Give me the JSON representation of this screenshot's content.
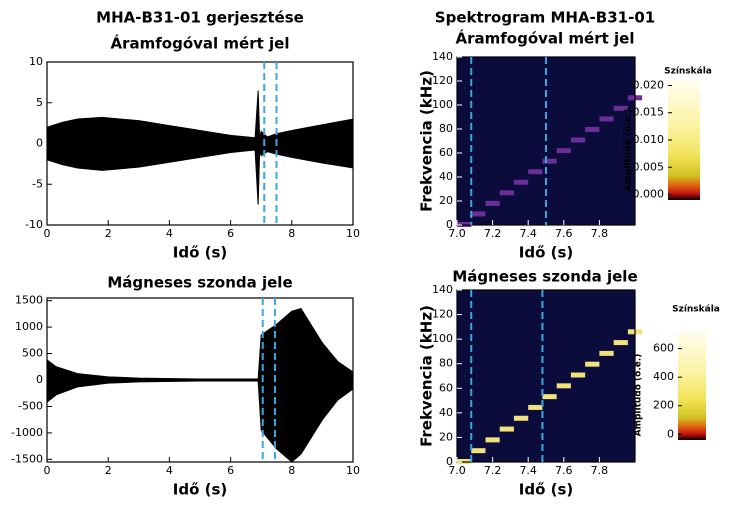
{
  "chart_data": [
    {
      "type": "area",
      "title": [
        "MHA-B31-01 gerjesztése",
        "Áramfogóval mért jel"
      ],
      "x_label": "Idő (s)",
      "x": [
        0,
        0.5,
        1,
        1.8,
        3,
        4,
        5,
        6,
        6.8,
        6.9,
        6.95,
        7.0,
        7.2,
        7.5,
        8,
        9,
        10
      ],
      "upper": [
        2,
        2.6,
        3,
        3.2,
        2.8,
        2.2,
        1.6,
        1.0,
        0.7,
        6.5,
        0.7,
        1.5,
        0.8,
        1.2,
        1.6,
        2.3,
        3
      ],
      "lower": [
        -2,
        -2.6,
        -3,
        -3.3,
        -2.9,
        -2.3,
        -1.7,
        -1.1,
        -0.8,
        -7.5,
        -0.8,
        -1.5,
        -1,
        -1.3,
        -1.7,
        -2.4,
        -3
      ],
      "color": "#000000",
      "marker_color": "#3aa8e0",
      "vlines": [
        7.1,
        7.5
      ],
      "xlim": [
        0,
        10
      ],
      "xticks": [
        0,
        2,
        4,
        6,
        8,
        10
      ],
      "ylim": [
        -10,
        10
      ],
      "yticks": [
        -10,
        -5,
        0,
        5,
        10
      ]
    },
    {
      "type": "spectrogram",
      "title": [
        "Spektrogram MHA-B31-01",
        "Áramfogóval mért jel"
      ],
      "x_label": "Idő (s)",
      "y_label": "Frekvencia (kHz)",
      "x": [
        7.0,
        7.08,
        7.16,
        7.24,
        7.32,
        7.4,
        7.48,
        7.56,
        7.64,
        7.72,
        7.8,
        7.88,
        7.96
      ],
      "values": [
        0,
        8.8,
        17.6,
        26.4,
        35.2,
        44,
        52.8,
        61.6,
        70.4,
        79.2,
        88,
        96.8,
        105.6
      ],
      "color": "#6a2e98",
      "background": "#0b0b3c",
      "marker_color": "#3aa8e0",
      "vlines": [
        7.08,
        7.5
      ],
      "xlim": [
        7.0,
        8.0
      ],
      "xticks": [
        {
          "value": 7.0,
          "label": "7.0"
        },
        7.2,
        7.4,
        7.6,
        7.8
      ],
      "ylim": [
        0,
        140
      ],
      "yticks": [
        0,
        20,
        40,
        60,
        80,
        100,
        120,
        140
      ],
      "colorbar": {
        "title": "Színskála",
        "label": "Amplitúdó (ö.e.)",
        "lim": [
          -0.001,
          0.021
        ],
        "ticks": [
          {
            "value": 0,
            "label": "0.000"
          },
          {
            "value": 0.005,
            "label": "0.005"
          },
          {
            "value": 0.01,
            "label": "0.010"
          },
          {
            "value": 0.015,
            "label": "0.015"
          },
          {
            "value": 0.02,
            "label": "0.020"
          }
        ]
      }
    },
    {
      "type": "area",
      "title": [
        "Mágneses szonda jele"
      ],
      "x_label": "Idő (s)",
      "x": [
        0,
        0.3,
        1,
        2,
        3,
        5,
        6.9,
        7.0,
        7.5,
        8.0,
        8.3,
        9,
        9.5,
        10
      ],
      "upper": [
        380,
        250,
        120,
        60,
        35,
        20,
        20,
        850,
        1050,
        1300,
        1350,
        700,
        350,
        150
      ],
      "lower": [
        -420,
        -280,
        -130,
        -60,
        -35,
        -20,
        -20,
        -950,
        -1300,
        -1550,
        -1400,
        -750,
        -380,
        -170
      ],
      "color": "#000000",
      "marker_color": "#3aa8e0",
      "vlines": [
        7.05,
        7.45
      ],
      "xlim": [
        0,
        10
      ],
      "xticks": [
        0,
        2,
        4,
        6,
        8,
        10
      ],
      "ylim": [
        -1550,
        1550
      ],
      "yticks": [
        -1500,
        -1000,
        -500,
        0,
        500,
        1000,
        1500
      ]
    },
    {
      "type": "spectrogram",
      "title": [
        "Mágneses szonda jele"
      ],
      "x_label": "Idő (s)",
      "y_label": "Frekvencia (kHz)",
      "x": [
        7.0,
        7.08,
        7.16,
        7.24,
        7.32,
        7.4,
        7.48,
        7.56,
        7.64,
        7.72,
        7.8,
        7.88,
        7.96
      ],
      "values": [
        0,
        8.8,
        17.6,
        26.4,
        35.2,
        44,
        52.8,
        61.6,
        70.4,
        79.2,
        88,
        96.8,
        105.6
      ],
      "color": "#f2e27a",
      "background": "#0b0b3c",
      "marker_color": "#3aa8e0",
      "vlines": [
        7.08,
        7.48
      ],
      "xlim": [
        7.0,
        8.0
      ],
      "xticks": [
        {
          "value": 7.0,
          "label": "7.0"
        },
        7.2,
        7.4,
        7.6,
        7.8
      ],
      "ylim": [
        0,
        140
      ],
      "yticks": [
        0,
        20,
        40,
        60,
        80,
        100,
        120,
        140
      ],
      "colorbar": {
        "title": "Színskála",
        "label": "Amplitúdó (ö.e.)",
        "lim": [
          -40,
          730
        ],
        "ticks": [
          0,
          200,
          400,
          600
        ]
      }
    }
  ]
}
